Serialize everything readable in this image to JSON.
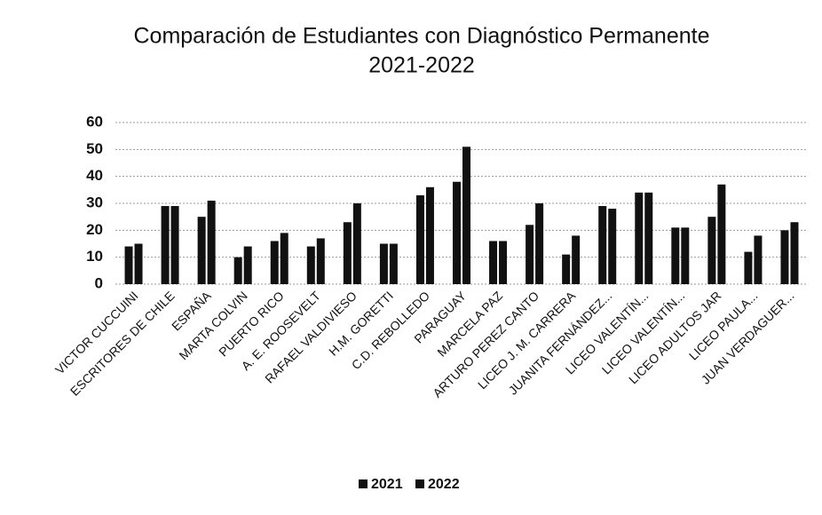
{
  "chart_data": {
    "type": "bar",
    "title": "Comparación de Estudiantes con Diagnóstico Permanente",
    "subtitle": "2021-2022",
    "categories": [
      "VICTOR CUCCUINI",
      "ESCRITORES DE CHILE",
      "ESPAÑA",
      "MARTA COLVIN",
      "PUERTO RICO",
      "A. E. ROOSEVELT",
      "RAFAEL VALDIVIESO",
      "H.M. GORETTI",
      "C.D. REBOLLEDO",
      "PARAGUAY",
      "MARCELA PAZ",
      "ARTURO PEREZ CANTO",
      "LICEO J. M. CARRERA",
      "JUANITA FERNÁNDEZ...",
      "LICEO VALENTÍN...",
      "LICEO VALENTÍN...",
      "LICEO ADULTOS JAR",
      "LICEO PAULA...",
      "JUAN VERDAGUER..."
    ],
    "series": [
      {
        "name": "2021",
        "color": "#111111",
        "values": [
          14,
          29,
          25,
          10,
          16,
          14,
          23,
          15,
          33,
          38,
          16,
          22,
          11,
          29,
          34,
          21,
          25,
          12,
          20
        ]
      },
      {
        "name": "2022",
        "color": "#111111",
        "values": [
          15,
          29,
          31,
          14,
          19,
          17,
          30,
          15,
          36,
          51,
          16,
          30,
          18,
          28,
          34,
          21,
          37,
          18,
          23
        ]
      }
    ],
    "ylim": [
      0,
      60
    ],
    "yticks": [
      0,
      10,
      20,
      30,
      40,
      50,
      60
    ],
    "grid": true,
    "legend": "bottom"
  }
}
